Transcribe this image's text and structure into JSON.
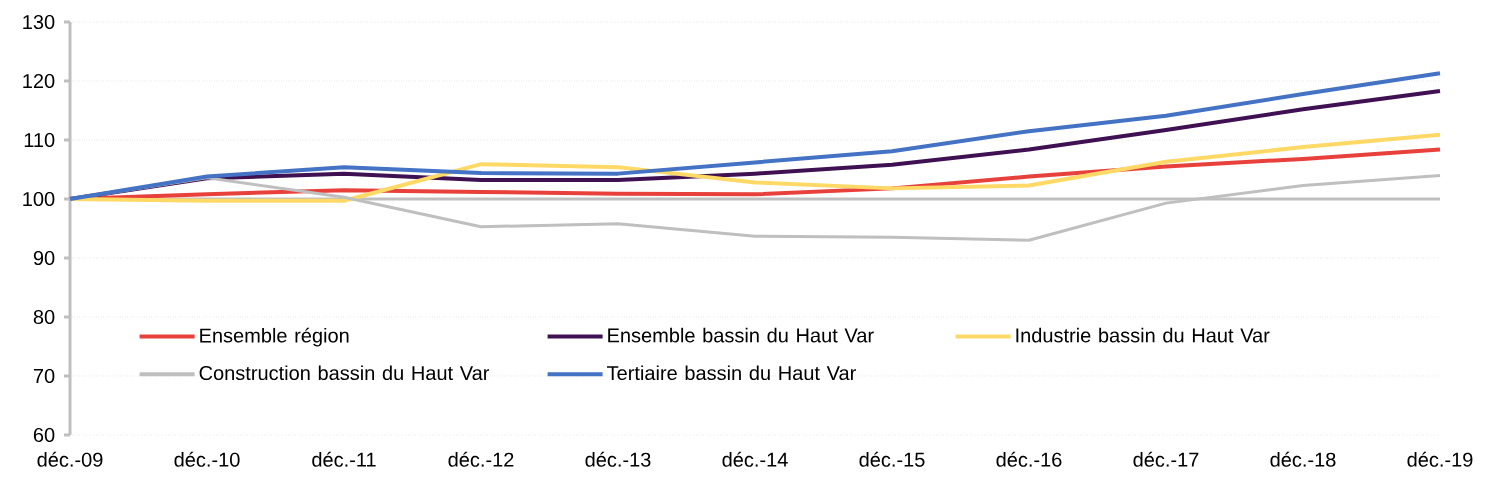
{
  "chart_data": {
    "type": "line",
    "categories": [
      "déc.-09",
      "déc.-10",
      "déc.-11",
      "déc.-12",
      "déc.-13",
      "déc.-14",
      "déc.-15",
      "déc.-16",
      "déc.-17",
      "déc.-18",
      "déc.-19"
    ],
    "series": [
      {
        "name": "Ensemble région",
        "color": "#e8413c",
        "values": [
          100,
          100.8,
          101.5,
          101.2,
          100.9,
          100.8,
          101.8,
          103.8,
          105.5,
          106.8,
          108.4
        ]
      },
      {
        "name": "Ensemble bassin du Haut Var",
        "color": "#3f1152",
        "values": [
          100,
          103.5,
          104.3,
          103.2,
          103.2,
          104.3,
          105.8,
          108.4,
          111.7,
          115.2,
          118.3
        ]
      },
      {
        "name": "Industrie bassin du Haut Var",
        "color": "#ffd966",
        "values": [
          100,
          99.7,
          99.7,
          105.9,
          105.4,
          102.8,
          101.8,
          102.3,
          106.3,
          108.8,
          110.9
        ]
      },
      {
        "name": "Construction bassin du Haut Var",
        "color": "#bfbfbf",
        "values": [
          100,
          103.6,
          100.3,
          95.3,
          95.8,
          93.7,
          93.5,
          93.0,
          99.3,
          102.3,
          104.0
        ]
      },
      {
        "name": "Tertiaire bassin du Haut Var",
        "color": "#4472c4",
        "values": [
          100,
          103.8,
          105.4,
          104.4,
          104.3,
          106.2,
          108.1,
          111.5,
          114.1,
          117.8,
          121.3
        ]
      }
    ],
    "ylim": [
      60,
      130
    ],
    "yticks": [
      60,
      70,
      80,
      90,
      100,
      110,
      120,
      130
    ],
    "ref_lines": [
      {
        "axis": "y",
        "value": 100,
        "color": "#bfbfbf"
      }
    ],
    "grid": "y",
    "legend": "bottom left",
    "marker": "none",
    "line_style": "solid"
  }
}
